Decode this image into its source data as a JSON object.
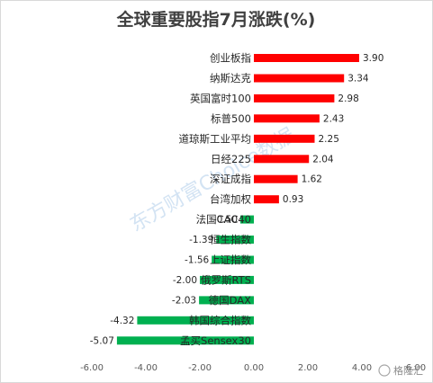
{
  "chart_data": {
    "type": "bar",
    "orientation": "horizontal",
    "title": "全球重要股指7月涨跌(%)",
    "categories": [
      "创业板指",
      "纳斯达克",
      "英国富时100",
      "标普500",
      "道琼斯工业平均",
      "日经225",
      "深证成指",
      "台湾加权",
      "法国CAC40",
      "恒生指数",
      "上证指数",
      "俄罗斯RTS",
      "德国DAX",
      "韩国综合指数",
      "孟买Sensex30"
    ],
    "values": [
      3.9,
      3.34,
      2.98,
      2.43,
      2.25,
      2.04,
      1.62,
      0.93,
      -0.5,
      -1.39,
      -1.56,
      -2.0,
      -2.03,
      -4.32,
      -5.07
    ],
    "value_labels": [
      "3.90",
      "3.34",
      "2.98",
      "2.43",
      "2.25",
      "2.04",
      "1.62",
      "0.93",
      "-0.50",
      "-1.39",
      "-1.56",
      "-2.00",
      "-2.03",
      "-4.32",
      "-5.07"
    ],
    "xlim": [
      -6,
      6
    ],
    "x_ticks": [
      -6,
      -4,
      -2,
      0,
      2,
      4,
      6
    ],
    "x_tick_labels": [
      "-6.00",
      "-4.00",
      "-2.00",
      "0.00",
      "2.00",
      "4.00",
      "6.00"
    ],
    "xlabel": "",
    "ylabel": "",
    "grid": false,
    "legend": "none",
    "colors": {
      "positive": "#ff0000",
      "negative": "#00b050"
    }
  },
  "watermark": "东方财富Choice数据",
  "brand": "格隆汇"
}
